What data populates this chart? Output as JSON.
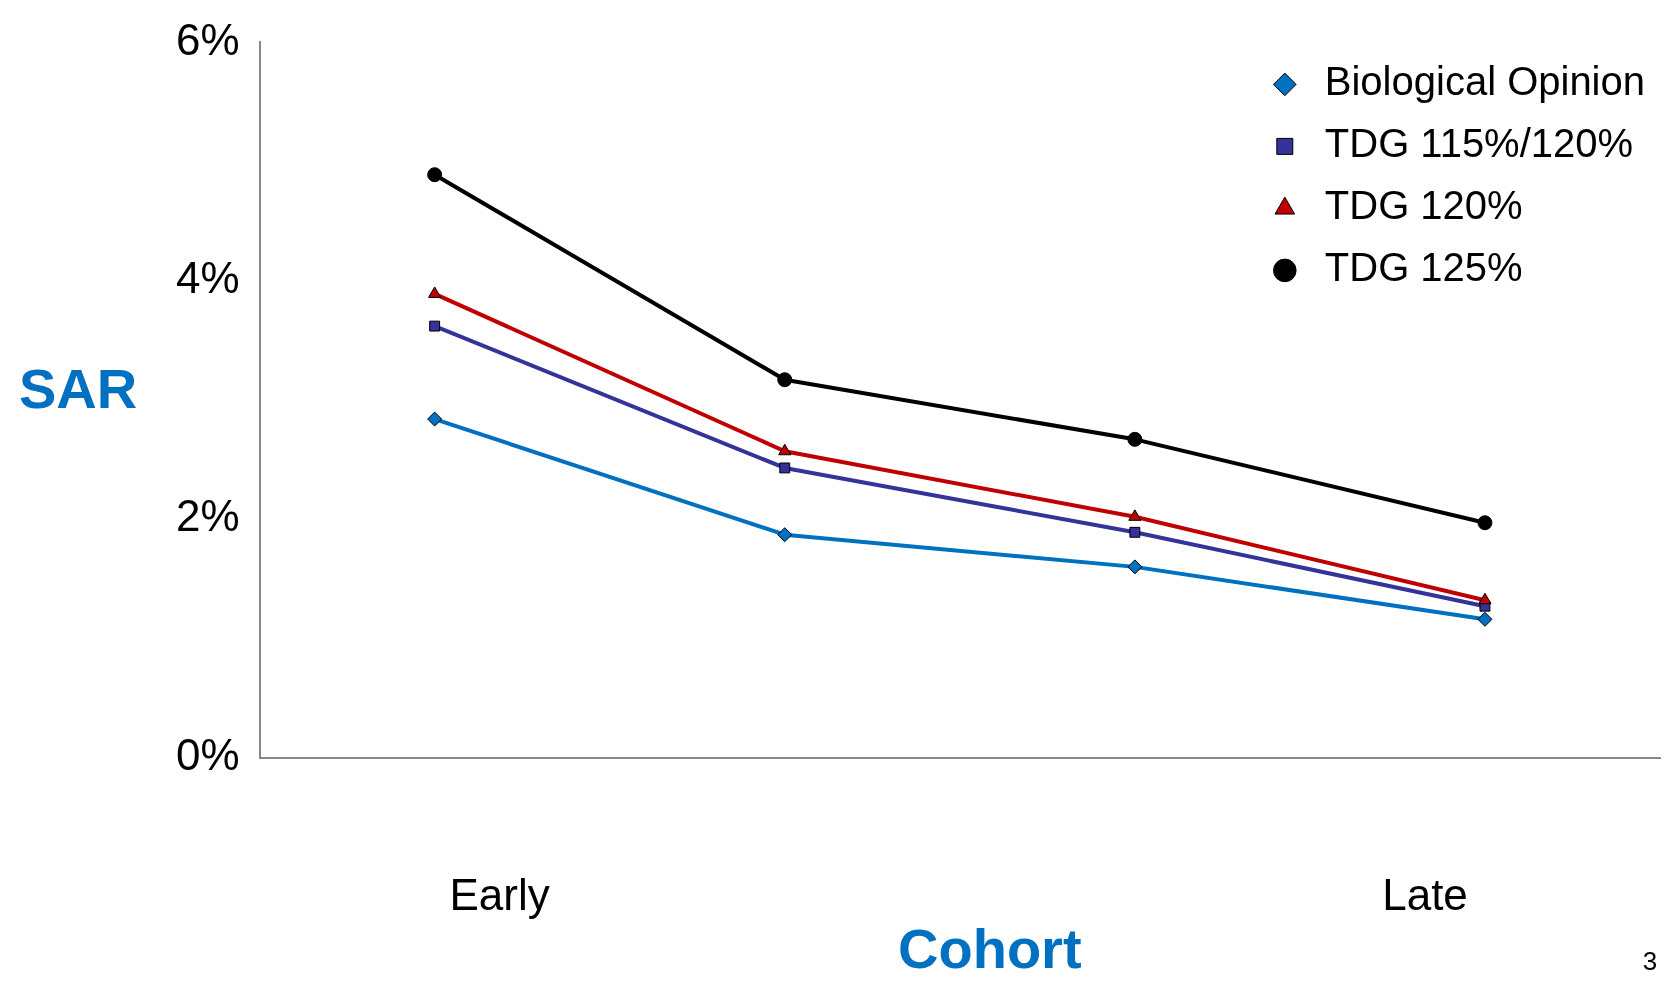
{
  "chart_data": {
    "type": "line",
    "xlabel": "Cohort",
    "ylabel": "SAR",
    "categories": [
      null,
      null,
      null,
      null
    ],
    "series": [
      {
        "name": "Biological Opinion",
        "color": "#0070c0",
        "marker": "diamond",
        "values": [
          2.84,
          1.87,
          1.6,
          1.16
        ]
      },
      {
        "name": "TDG 115%/120%",
        "color": "#333399",
        "marker": "square",
        "values": [
          3.62,
          2.43,
          1.89,
          1.27
        ]
      },
      {
        "name": "TDG 120%",
        "color": "#c00000",
        "marker": "triangle",
        "values": [
          3.89,
          2.57,
          2.02,
          1.32
        ]
      },
      {
        "name": "TDG 125%",
        "color": "#000000",
        "marker": "circle",
        "values": [
          4.89,
          3.17,
          2.67,
          1.97
        ]
      }
    ],
    "ylim": [
      0,
      6
    ],
    "yticks": [
      {
        "value": 0,
        "label": "0%"
      },
      {
        "value": 2,
        "label": "2%"
      },
      {
        "value": 4,
        "label": "4%"
      },
      {
        "value": 6,
        "label": "6%"
      }
    ],
    "grid": false,
    "legend": "top right",
    "line_style": "solid",
    "annotations": [
      "Early",
      "Late",
      "3"
    ]
  }
}
